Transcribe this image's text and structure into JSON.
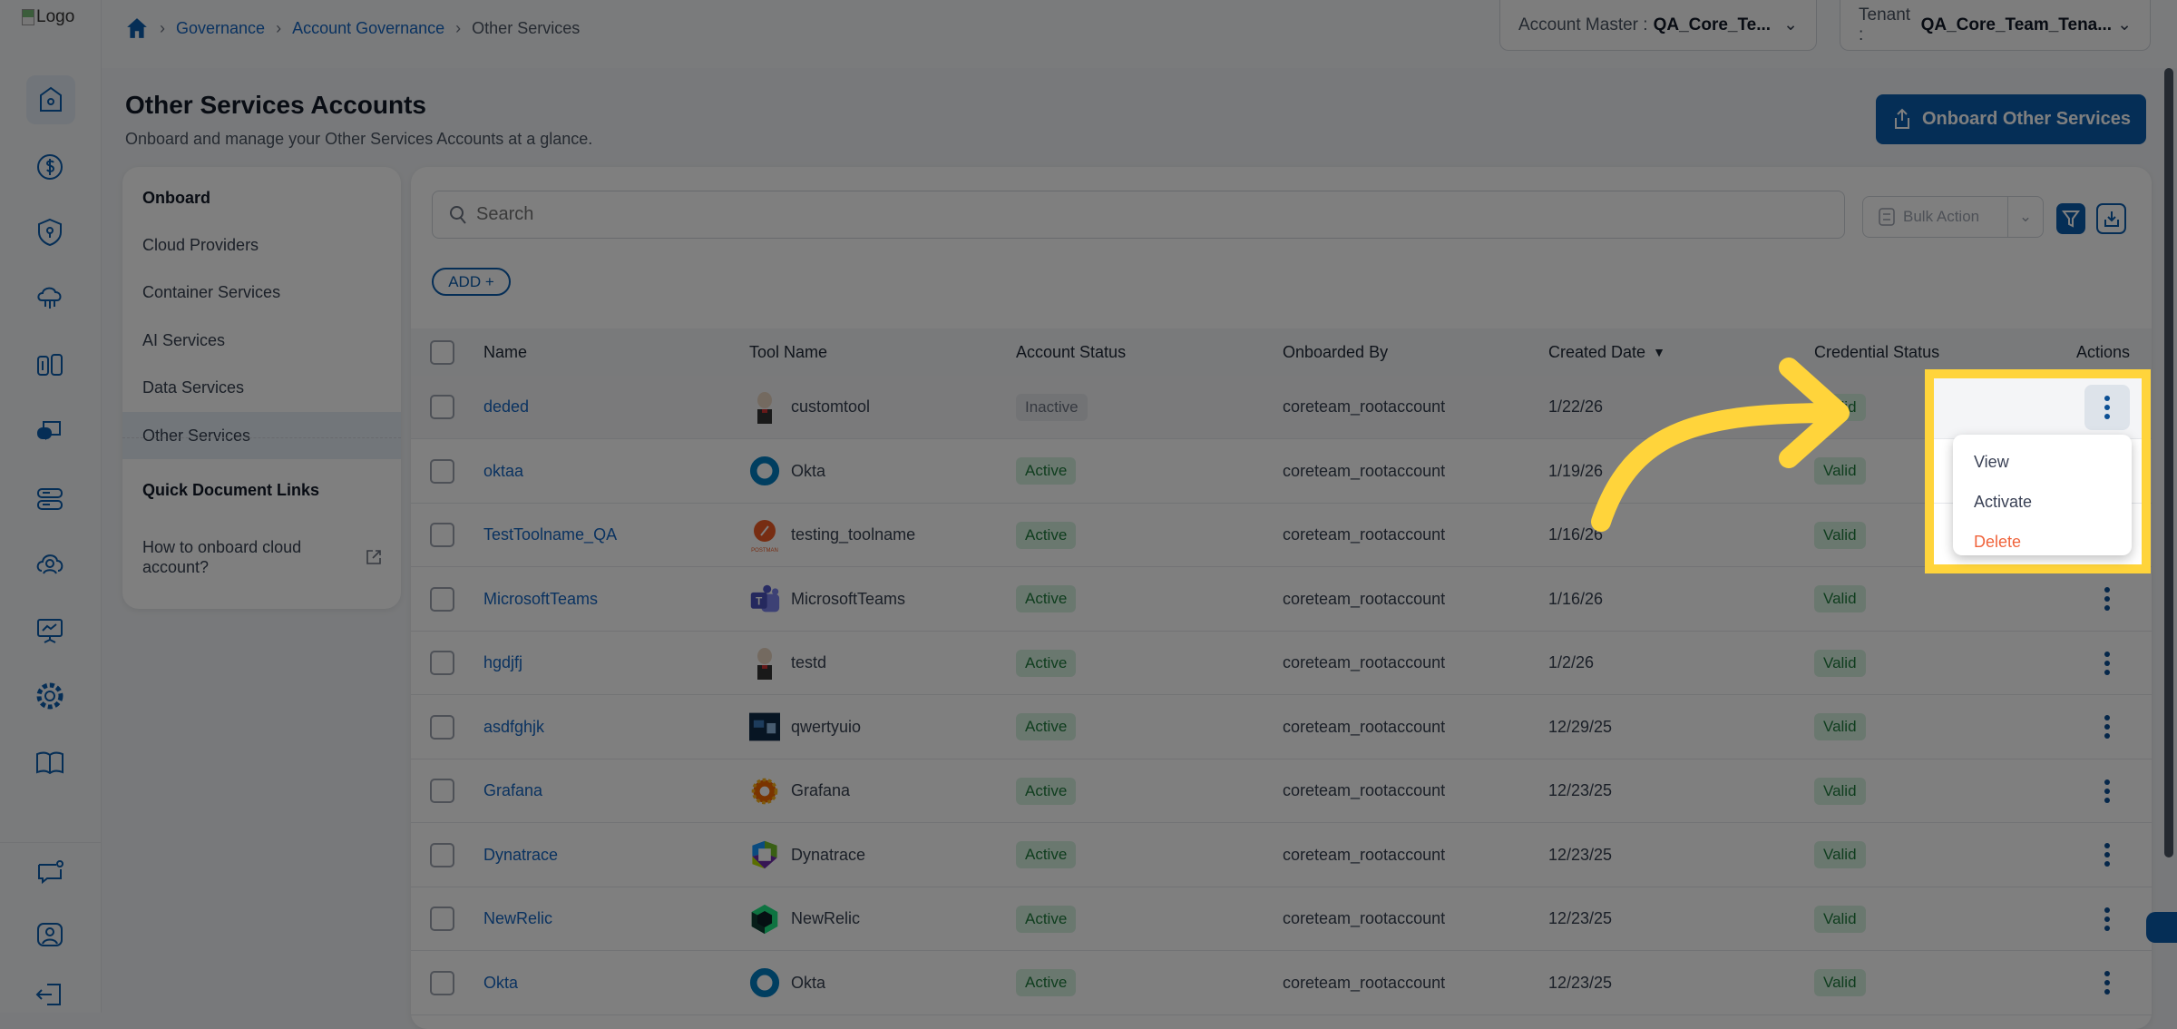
{
  "logo_alt": "Logo",
  "breadcrumb": {
    "items": [
      "Governance",
      "Account Governance"
    ],
    "current": "Other Services"
  },
  "header": {
    "account_master_label": "Account Master :",
    "account_master_value": "QA_Core_Te...",
    "tenant_label": "Tenant :",
    "tenant_value": "QA_Core_Team_Tena..."
  },
  "sidebar": {
    "icons": [
      "home-icon",
      "dollar-icon",
      "shield-icon",
      "cloud-network-icon",
      "bracket-icon",
      "ai-chat-icon",
      "server-icon",
      "cloud-user-icon",
      "presentation-icon",
      "gear-icon",
      "book-icon"
    ],
    "bottom_icons": [
      "feedback-icon",
      "profile-icon",
      "logout-icon"
    ]
  },
  "page": {
    "title": "Other Services Accounts",
    "subtitle": "Onboard and manage your Other Services Accounts at a glance.",
    "onboard_button": "Onboard Other Services"
  },
  "left_panel": {
    "onboard_heading": "Onboard",
    "items": [
      "Cloud Providers",
      "Container Services",
      "AI Services",
      "Data Services",
      "Other Services"
    ],
    "selected": "Other Services",
    "docs_heading": "Quick Document Links",
    "doc_link": "How to onboard cloud account?"
  },
  "toolbar": {
    "search_placeholder": "Search",
    "bulk_action": "Bulk Action",
    "add_button": "ADD +"
  },
  "table": {
    "columns": [
      "Name",
      "Tool Name",
      "Account Status",
      "Onboarded By",
      "Created Date",
      "Credential Status",
      "Actions"
    ],
    "sort_column": "Created Date",
    "sort_direction": "desc",
    "rows": [
      {
        "name": "deded",
        "tool": "customtool",
        "tool_icon": "jenkins",
        "status": "Inactive",
        "by": "coreteam_rootaccount",
        "date": "1/22/26",
        "cred": "Valid"
      },
      {
        "name": "oktaa",
        "tool": "Okta",
        "tool_icon": "okta",
        "status": "Active",
        "by": "coreteam_rootaccount",
        "date": "1/19/26",
        "cred": "Valid"
      },
      {
        "name": "TestToolname_QA",
        "tool": "testing_toolname",
        "tool_icon": "postman",
        "status": "Active",
        "by": "coreteam_rootaccount",
        "date": "1/16/26",
        "cred": "Valid"
      },
      {
        "name": "MicrosoftTeams",
        "tool": "MicrosoftTeams",
        "tool_icon": "teams",
        "status": "Active",
        "by": "coreteam_rootaccount",
        "date": "1/16/26",
        "cred": "Valid"
      },
      {
        "name": "hgdjfj",
        "tool": "testd",
        "tool_icon": "jenkins",
        "status": "Active",
        "by": "coreteam_rootaccount",
        "date": "1/2/26",
        "cred": "Valid"
      },
      {
        "name": "asdfghjk",
        "tool": "qwertyuio",
        "tool_icon": "image",
        "status": "Active",
        "by": "coreteam_rootaccount",
        "date": "12/29/25",
        "cred": "Valid"
      },
      {
        "name": "Grafana",
        "tool": "Grafana",
        "tool_icon": "grafana",
        "status": "Active",
        "by": "coreteam_rootaccount",
        "date": "12/23/25",
        "cred": "Valid"
      },
      {
        "name": "Dynatrace",
        "tool": "Dynatrace",
        "tool_icon": "dynatrace",
        "status": "Active",
        "by": "coreteam_rootaccount",
        "date": "12/23/25",
        "cred": "Valid"
      },
      {
        "name": "NewRelic",
        "tool": "NewRelic",
        "tool_icon": "newrelic",
        "status": "Active",
        "by": "coreteam_rootaccount",
        "date": "12/23/25",
        "cred": "Valid"
      },
      {
        "name": "Okta",
        "tool": "Okta",
        "tool_icon": "okta",
        "status": "Active",
        "by": "coreteam_rootaccount",
        "date": "12/23/25",
        "cred": "Valid"
      }
    ]
  },
  "action_menu": {
    "items": [
      "View",
      "Activate",
      "Delete"
    ],
    "open_row": "deded"
  },
  "colors": {
    "primary": "#0b5cad",
    "highlight": "#FFD43B",
    "delete": "#f0643c",
    "active_chip": "#d5f0de"
  }
}
